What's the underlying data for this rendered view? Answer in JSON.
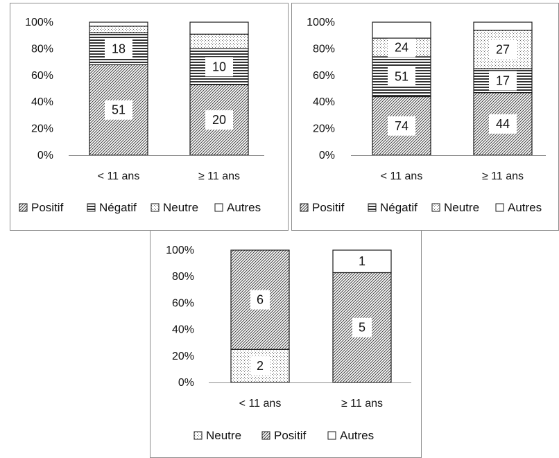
{
  "chart_data": [
    {
      "type": "bar",
      "stacked": true,
      "percent": true,
      "categories": [
        "< 11 ans",
        "≥ 11 ans"
      ],
      "yticks": [
        "0%",
        "20%",
        "40%",
        "60%",
        "80%",
        "100%"
      ],
      "ylim": [
        0,
        100
      ],
      "legend_position": "bottom",
      "series": [
        {
          "name": "Positif",
          "pattern": "diagonal",
          "values": [
            68,
            53
          ],
          "labels": [
            "51",
            "20"
          ]
        },
        {
          "name": "Négatif",
          "pattern": "horizontal",
          "values": [
            24,
            27
          ],
          "labels": [
            "18",
            "10"
          ]
        },
        {
          "name": "Neutre",
          "pattern": "dots",
          "values": [
            5,
            11
          ],
          "labels": [
            "",
            ""
          ]
        },
        {
          "name": "Autres",
          "pattern": "blank",
          "values": [
            3,
            9
          ],
          "labels": [
            "",
            ""
          ]
        }
      ]
    },
    {
      "type": "bar",
      "stacked": true,
      "percent": true,
      "categories": [
        "< 11 ans",
        "≥ 11 ans"
      ],
      "yticks": [
        "0%",
        "20%",
        "40%",
        "60%",
        "80%",
        "100%"
      ],
      "ylim": [
        0,
        100
      ],
      "legend_position": "bottom",
      "series": [
        {
          "name": "Positif",
          "pattern": "diagonal",
          "values": [
            44,
            47
          ],
          "labels": [
            "74",
            "44"
          ]
        },
        {
          "name": "Négatif",
          "pattern": "horizontal",
          "values": [
            30,
            18
          ],
          "labels": [
            "51",
            "17"
          ]
        },
        {
          "name": "Neutre",
          "pattern": "dots",
          "values": [
            14,
            29
          ],
          "labels": [
            "24",
            "27"
          ]
        },
        {
          "name": "Autres",
          "pattern": "blank",
          "values": [
            12,
            6
          ],
          "labels": [
            "",
            ""
          ]
        }
      ]
    },
    {
      "type": "bar",
      "stacked": true,
      "percent": true,
      "categories": [
        "< 11 ans",
        "≥ 11 ans"
      ],
      "yticks": [
        "0%",
        "20%",
        "40%",
        "60%",
        "80%",
        "100%"
      ],
      "ylim": [
        0,
        100
      ],
      "legend_position": "bottom",
      "series": [
        {
          "name": "Neutre",
          "pattern": "dots",
          "values": [
            25,
            0
          ],
          "labels": [
            "2",
            ""
          ]
        },
        {
          "name": "Positif",
          "pattern": "diagonal",
          "values": [
            75,
            83
          ],
          "labels": [
            "6",
            "5"
          ]
        },
        {
          "name": "Autres",
          "pattern": "blank",
          "values": [
            0,
            17
          ],
          "labels": [
            "",
            "1"
          ]
        }
      ]
    }
  ]
}
